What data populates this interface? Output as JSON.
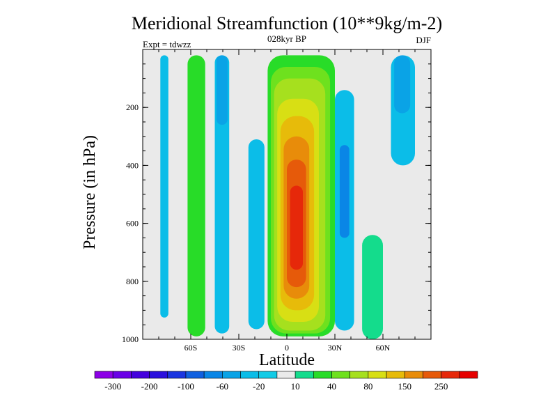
{
  "chart_data": {
    "type": "heatmap",
    "title": "Meridional Streamfunction (10**9kg/m-2)",
    "subtitle": "028kyr BP",
    "left_label": "Expt = tdwzz",
    "right_label": "DJF",
    "xlabel": "Latitude",
    "ylabel": "Pressure (in hPa)",
    "xlim": [
      -90,
      90
    ],
    "ylim": [
      0,
      1000
    ],
    "x_ticks": [
      {
        "value": -60,
        "label": "60S"
      },
      {
        "value": -30,
        "label": "30S"
      },
      {
        "value": 0,
        "label": "0"
      },
      {
        "value": 30,
        "label": "30N"
      },
      {
        "value": 60,
        "label": "60N"
      }
    ],
    "y_ticks": [
      {
        "value": 200,
        "label": "200"
      },
      {
        "value": 400,
        "label": "400"
      },
      {
        "value": 600,
        "label": "600"
      },
      {
        "value": 800,
        "label": "800"
      },
      {
        "value": 1000,
        "label": "1000"
      }
    ],
    "colorbar": {
      "levels": [
        -300,
        -250,
        -200,
        -150,
        -100,
        -80,
        -60,
        -40,
        -20,
        -10,
        10,
        20,
        40,
        60,
        80,
        100,
        150,
        200,
        250,
        300
      ],
      "labels": [
        "-300",
        "-200",
        "-100",
        "-60",
        "-20",
        "10",
        "40",
        "80",
        "150",
        "250"
      ],
      "colors": [
        "#8c00e6",
        "#6a00e6",
        "#4400dd",
        "#2b10dd",
        "#1a35e0",
        "#1060e0",
        "#0a86e6",
        "#0aa3e6",
        "#0bbde8",
        "#12cbe6",
        "#eaeaea",
        "#14dc8c",
        "#28dc28",
        "#6ee11e",
        "#a6e01e",
        "#d8df14",
        "#e7bb0a",
        "#e88c0a",
        "#e65a0a",
        "#e6280a",
        "#e60000"
      ]
    },
    "field": [
      {
        "name": "neg-sh-outer",
        "color": "#0bbde8",
        "lat": [
          -79,
          -74
        ],
        "p": [
          20,
          925
        ]
      },
      {
        "name": "pos-sh-band",
        "color": "#28dc28",
        "lat": [
          -62,
          -51
        ],
        "p": [
          20,
          990
        ]
      },
      {
        "name": "neg-sh-mid",
        "color": "#0bbde8",
        "lat": [
          -45,
          -36
        ],
        "p": [
          20,
          980
        ]
      },
      {
        "name": "neg-sh-mid-core",
        "color": "#0aa3e6",
        "lat": [
          -44,
          -37
        ],
        "p": [
          20,
          260
        ]
      },
      {
        "name": "neg-sh-inner",
        "color": "#0bbde8",
        "lat": [
          -24,
          -14
        ],
        "p": [
          310,
          965
        ]
      },
      {
        "name": "hadley-cell-outer",
        "color": "#28dc28",
        "lat": [
          -12,
          30
        ],
        "p": [
          20,
          990
        ]
      },
      {
        "name": "hadley-cell-20",
        "color": "#6ee11e",
        "lat": [
          -10,
          27
        ],
        "p": [
          60,
          980
        ]
      },
      {
        "name": "hadley-cell-40",
        "color": "#a6e01e",
        "lat": [
          -8,
          24
        ],
        "p": [
          100,
          970
        ]
      },
      {
        "name": "hadley-cell-60",
        "color": "#d8df14",
        "lat": [
          -6,
          20
        ],
        "p": [
          170,
          940
        ]
      },
      {
        "name": "hadley-cell-80",
        "color": "#e7bb0a",
        "lat": [
          -4,
          17
        ],
        "p": [
          230,
          900
        ]
      },
      {
        "name": "hadley-cell-100",
        "color": "#e88c0a",
        "lat": [
          -2,
          14
        ],
        "p": [
          300,
          860
        ]
      },
      {
        "name": "hadley-cell-150",
        "color": "#e65a0a",
        "lat": [
          0,
          12
        ],
        "p": [
          380,
          820
        ]
      },
      {
        "name": "hadley-cell-200",
        "color": "#e6280a",
        "lat": [
          2,
          10
        ],
        "p": [
          470,
          760
        ]
      },
      {
        "name": "neg-nh-ferrel",
        "color": "#0bbde8",
        "lat": [
          30,
          42
        ],
        "p": [
          140,
          970
        ]
      },
      {
        "name": "neg-nh-ferrel-core",
        "color": "#0a86e6",
        "lat": [
          33,
          39
        ],
        "p": [
          330,
          650
        ]
      },
      {
        "name": "pos-nh-band",
        "color": "#14dc8c",
        "lat": [
          47,
          60
        ],
        "p": [
          640,
          1000
        ]
      },
      {
        "name": "neg-nh-polar",
        "color": "#0bbde8",
        "lat": [
          65,
          80
        ],
        "p": [
          20,
          400
        ]
      },
      {
        "name": "neg-nh-polar-core",
        "color": "#0aa3e6",
        "lat": [
          67,
          77
        ],
        "p": [
          20,
          220
        ]
      }
    ]
  }
}
